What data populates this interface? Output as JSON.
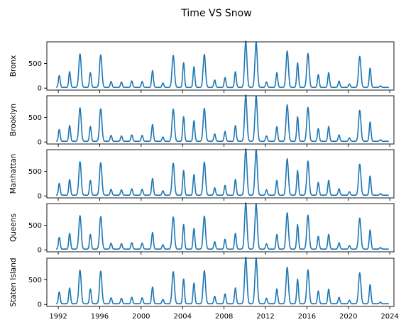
{
  "figure": {
    "title": "Time VS Snow"
  },
  "chart_data": {
    "type": "line",
    "title": "Time VS Snow",
    "xlabel": "",
    "x_ticks": [
      "1992",
      "1996",
      "2000",
      "2004",
      "2008",
      "2012",
      "2016",
      "2020",
      "2024"
    ],
    "xlim": [
      1990.9,
      2024.4
    ],
    "y_ticks": [
      0,
      500
    ],
    "ylim": [
      -40,
      940
    ],
    "grid": false,
    "legend": "none",
    "color": "#1f77b4",
    "seasonal_peaks": [
      {
        "year": 1992,
        "value": 240
      },
      {
        "year": 1993,
        "value": 320
      },
      {
        "year": 1994,
        "value": 680
      },
      {
        "year": 1995,
        "value": 300
      },
      {
        "year": 1996,
        "value": 660
      },
      {
        "year": 1997,
        "value": 120
      },
      {
        "year": 1998,
        "value": 110
      },
      {
        "year": 1999,
        "value": 130
      },
      {
        "year": 2000,
        "value": 120
      },
      {
        "year": 2001,
        "value": 340
      },
      {
        "year": 2002,
        "value": 90
      },
      {
        "year": 2003,
        "value": 650
      },
      {
        "year": 2004,
        "value": 500
      },
      {
        "year": 2005,
        "value": 420
      },
      {
        "year": 2006,
        "value": 670
      },
      {
        "year": 2007,
        "value": 150
      },
      {
        "year": 2008,
        "value": 200
      },
      {
        "year": 2009,
        "value": 320
      },
      {
        "year": 2010,
        "value": 940
      },
      {
        "year": 2011,
        "value": 920
      },
      {
        "year": 2012,
        "value": 110
      },
      {
        "year": 2013,
        "value": 300
      },
      {
        "year": 2014,
        "value": 740
      },
      {
        "year": 2015,
        "value": 500
      },
      {
        "year": 2016,
        "value": 690
      },
      {
        "year": 2017,
        "value": 260
      },
      {
        "year": 2018,
        "value": 300
      },
      {
        "year": 2019,
        "value": 130
      },
      {
        "year": 2020,
        "value": 70
      },
      {
        "year": 2021,
        "value": 630
      },
      {
        "year": 2022,
        "value": 390
      },
      {
        "year": 2023,
        "value": 30
      }
    ],
    "series": [
      {
        "name": "Bronx",
        "ylabel": "Bronx"
      },
      {
        "name": "Brooklyn",
        "ylabel": "Brooklyn"
      },
      {
        "name": "Manhattan",
        "ylabel": "Manhattan"
      },
      {
        "name": "Queens",
        "ylabel": "Queens"
      },
      {
        "name": "Staten Island",
        "ylabel": "Staten Island"
      }
    ]
  }
}
